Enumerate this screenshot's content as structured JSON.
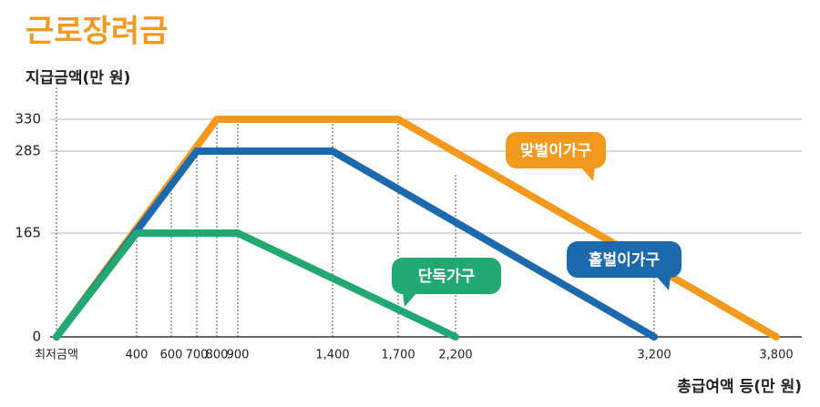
{
  "chart_data": {
    "type": "line",
    "title": "근로장려금",
    "ylabel": "지급금액(만 원)",
    "xlabel": "총급여액 등(만 원)",
    "xlim": [
      0,
      3800
    ],
    "ylim": [
      0,
      330
    ],
    "xticks": [
      {
        "value": 0,
        "label": "최저금액"
      },
      400,
      600,
      700,
      800,
      900,
      {
        "value": 1400,
        "label": "1,400"
      },
      {
        "value": 1700,
        "label": "1,700"
      },
      {
        "value": 2200,
        "label": "2,200"
      },
      {
        "value": 3200,
        "label": "3,200"
      },
      {
        "value": 3800,
        "label": "3,800"
      }
    ],
    "yticks": [
      0,
      165,
      285,
      330
    ],
    "grid": true,
    "series": [
      {
        "name": "맞벌이가구",
        "color": "#f39a1e",
        "x": [
          0,
          800,
          1700,
          3800
        ],
        "values": [
          0,
          330,
          330,
          0
        ]
      },
      {
        "name": "홑벌이가구",
        "color": "#1d69ad",
        "x": [
          0,
          700,
          1400,
          3200
        ],
        "values": [
          0,
          285,
          285,
          0
        ]
      },
      {
        "name": "단독가구",
        "color": "#22a873",
        "x": [
          0,
          400,
          900,
          2200
        ],
        "values": [
          0,
          165,
          165,
          0
        ]
      }
    ]
  }
}
